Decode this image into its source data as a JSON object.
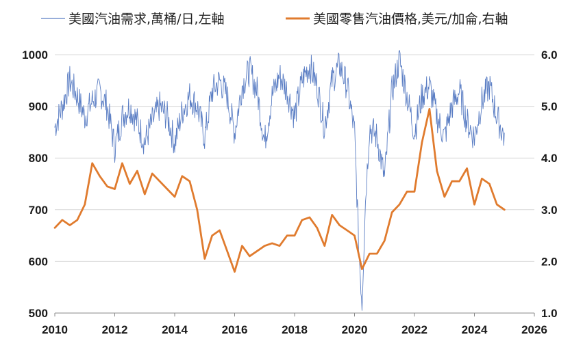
{
  "colors": {
    "demand": "#5b7ec4",
    "price": "#e07b2e",
    "grid": "#d9d9d9",
    "axis": "#888888"
  },
  "legend": {
    "demand_label": "美國汽油需求,萬桶/日,左軸",
    "price_label": "美國零售汽油價格,美元/加侖,右軸"
  },
  "chart_data": {
    "type": "line",
    "x_range": [
      2010,
      2026
    ],
    "x_ticks": [
      "2010",
      "2012",
      "2014",
      "2016",
      "2018",
      "2020",
      "2022",
      "2024",
      "2026"
    ],
    "y_left": {
      "range": [
        500,
        1000
      ],
      "ticks": [
        "500",
        "600",
        "700",
        "800",
        "900",
        "1000"
      ],
      "label": "萬桶/日"
    },
    "y_right": {
      "range": [
        1.0,
        6.0
      ],
      "ticks": [
        "1.0",
        "2.0",
        "3.0",
        "4.0",
        "5.0",
        "6.0"
      ],
      "label": "美元/加侖"
    },
    "grid": "horizontal",
    "legend_position": "top",
    "series": [
      {
        "name": "美國汽油需求,萬桶/日,左軸",
        "axis": "left",
        "style": "thin-line",
        "x": [
          2010.0,
          2010.25,
          2010.5,
          2010.75,
          2011.0,
          2011.25,
          2011.5,
          2011.75,
          2012.0,
          2012.25,
          2012.5,
          2012.75,
          2013.0,
          2013.25,
          2013.5,
          2013.75,
          2014.0,
          2014.25,
          2014.5,
          2014.75,
          2015.0,
          2015.25,
          2015.5,
          2015.75,
          2016.0,
          2016.25,
          2016.5,
          2016.75,
          2017.0,
          2017.25,
          2017.5,
          2017.75,
          2018.0,
          2018.25,
          2018.5,
          2018.75,
          2019.0,
          2019.25,
          2019.5,
          2019.75,
          2020.0,
          2020.15,
          2020.25,
          2020.35,
          2020.5,
          2020.75,
          2021.0,
          2021.25,
          2021.5,
          2021.75,
          2022.0,
          2022.25,
          2022.5,
          2022.75,
          2023.0,
          2023.25,
          2023.5,
          2023.75,
          2024.0,
          2024.25,
          2024.5,
          2024.75,
          2025.0
        ],
        "values": [
          860,
          900,
          950,
          920,
          880,
          910,
          930,
          900,
          820,
          880,
          900,
          870,
          830,
          870,
          900,
          880,
          830,
          890,
          920,
          900,
          840,
          930,
          950,
          920,
          850,
          940,
          970,
          930,
          830,
          920,
          960,
          930,
          880,
          950,
          980,
          940,
          860,
          950,
          980,
          940,
          850,
          620,
          520,
          700,
          860,
          840,
          760,
          930,
          990,
          920,
          850,
          920,
          940,
          880,
          840,
          900,
          930,
          870,
          840,
          910,
          940,
          880,
          840
        ]
      },
      {
        "name": "美國零售汽油價格,美元/加侖,右軸",
        "axis": "right",
        "style": "thick-line",
        "x": [
          2010.0,
          2010.25,
          2010.5,
          2010.75,
          2011.0,
          2011.25,
          2011.5,
          2011.75,
          2012.0,
          2012.25,
          2012.5,
          2012.75,
          2013.0,
          2013.25,
          2013.5,
          2013.75,
          2014.0,
          2014.25,
          2014.5,
          2014.75,
          2015.0,
          2015.25,
          2015.5,
          2015.75,
          2016.0,
          2016.25,
          2016.5,
          2016.75,
          2017.0,
          2017.25,
          2017.5,
          2017.75,
          2018.0,
          2018.25,
          2018.5,
          2018.75,
          2019.0,
          2019.25,
          2019.5,
          2019.75,
          2020.0,
          2020.25,
          2020.5,
          2020.75,
          2021.0,
          2021.25,
          2021.5,
          2021.75,
          2022.0,
          2022.25,
          2022.5,
          2022.75,
          2023.0,
          2023.25,
          2023.5,
          2023.75,
          2024.0,
          2024.25,
          2024.5,
          2024.75,
          2025.0
        ],
        "values": [
          2.65,
          2.8,
          2.7,
          2.8,
          3.1,
          3.9,
          3.65,
          3.45,
          3.4,
          3.9,
          3.5,
          3.75,
          3.3,
          3.7,
          3.55,
          3.4,
          3.25,
          3.65,
          3.55,
          3.0,
          2.05,
          2.5,
          2.6,
          2.2,
          1.8,
          2.3,
          2.1,
          2.2,
          2.3,
          2.35,
          2.3,
          2.5,
          2.5,
          2.8,
          2.85,
          2.65,
          2.3,
          2.9,
          2.7,
          2.6,
          2.5,
          1.85,
          2.15,
          2.15,
          2.4,
          2.95,
          3.1,
          3.35,
          3.35,
          4.3,
          4.95,
          3.75,
          3.25,
          3.55,
          3.55,
          3.8,
          3.1,
          3.6,
          3.5,
          3.1,
          3.0
        ]
      }
    ]
  }
}
